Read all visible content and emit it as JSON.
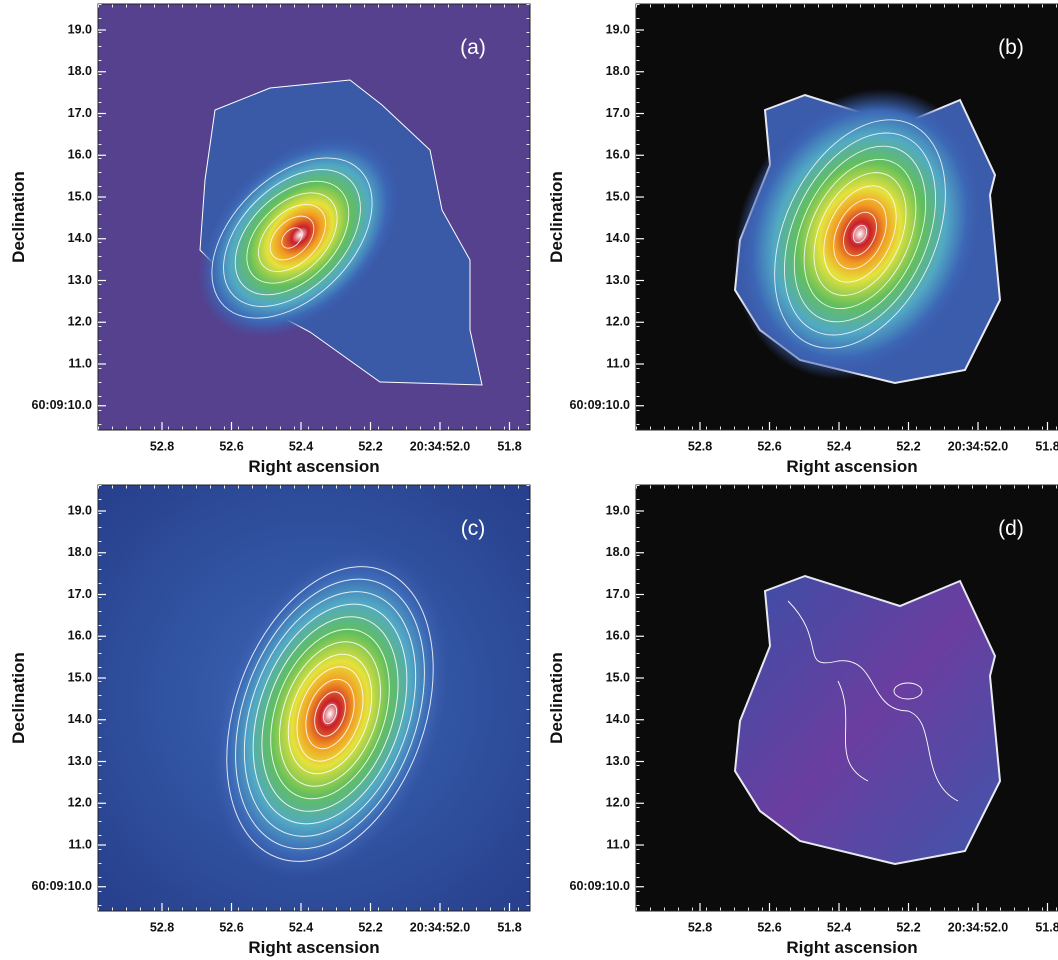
{
  "panels": [
    {
      "label": "(a)",
      "x_label": "Right ascension",
      "y_label": "Declination",
      "x_ticks": [
        "52.8",
        "52.6",
        "52.4",
        "52.2",
        "20:34:52.0",
        "51.8"
      ],
      "y_ticks": [
        "19.0",
        "18.0",
        "17.0",
        "16.0",
        "15.0",
        "14.0",
        "13.0",
        "12.0",
        "11.0",
        "60:09:10.0"
      ]
    },
    {
      "label": "(b)",
      "x_label": "Right ascension",
      "y_label": "Declination",
      "x_ticks": [
        "52.8",
        "52.6",
        "52.4",
        "52.2",
        "20:34:52.0",
        "51.8"
      ],
      "y_ticks": [
        "19.0",
        "18.0",
        "17.0",
        "16.0",
        "15.0",
        "14.0",
        "13.0",
        "12.0",
        "11.0",
        "60:09:10.0"
      ]
    },
    {
      "label": "(c)",
      "x_label": "Right ascension",
      "y_label": "Declination",
      "x_ticks": [
        "52.8",
        "52.6",
        "52.4",
        "52.2",
        "20:34:52.0",
        "51.8"
      ],
      "y_ticks": [
        "19.0",
        "18.0",
        "17.0",
        "16.0",
        "15.0",
        "14.0",
        "13.0",
        "12.0",
        "11.0",
        "60:09:10.0"
      ]
    },
    {
      "label": "(d)",
      "x_label": "Right ascension",
      "y_label": "Declination",
      "x_ticks": [
        "52.8",
        "52.6",
        "52.4",
        "52.2",
        "20:34:52.0",
        "51.8"
      ],
      "y_ticks": [
        "19.0",
        "18.0",
        "17.0",
        "16.0",
        "15.0",
        "14.0",
        "13.0",
        "12.0",
        "11.0",
        "60:09:10.0"
      ]
    }
  ]
}
